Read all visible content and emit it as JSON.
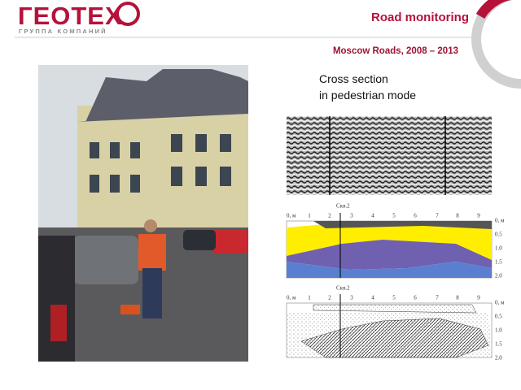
{
  "header": {
    "logo": "ГЕОТЕХ",
    "logo_subtitle": "ГРУППА КОМПАНИЙ",
    "title": "Road monitoring",
    "subtitle": "Moscow Roads, 2008 – 2013"
  },
  "caption": [
    "Cross section",
    "in pedestrian mode"
  ],
  "profiles": [
    {
      "well_label": "Скв.2",
      "x_labels": [
        "0, м",
        "1",
        "2",
        "3",
        "4",
        "5",
        "6",
        "7",
        "8",
        "9"
      ],
      "depth_labels": [
        "0, м",
        "0.5",
        "1.0",
        "1.5",
        "2.0"
      ]
    },
    {
      "well_label": "Скв.2",
      "x_labels": [
        "0, м",
        "1",
        "2",
        "3",
        "4",
        "5",
        "6",
        "7",
        "8",
        "9"
      ],
      "depth_labels": [
        "0, м",
        "0.5",
        "1.0",
        "1.5",
        "2.0"
      ]
    }
  ]
}
